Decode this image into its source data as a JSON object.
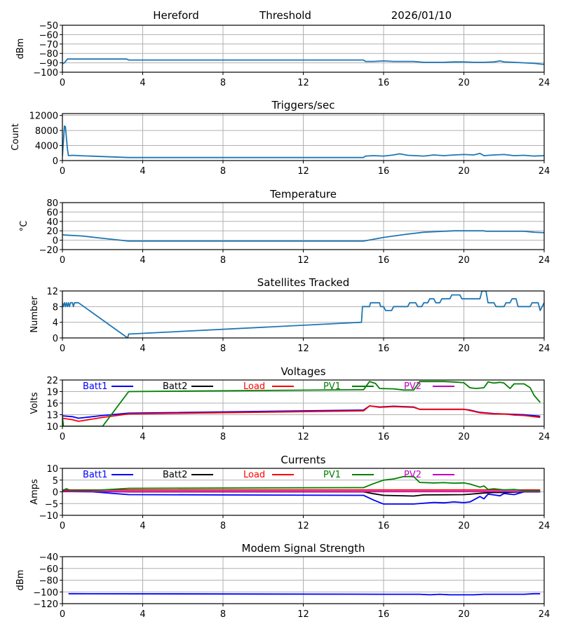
{
  "header": {
    "station": "Hereford",
    "mode": "Threshold",
    "date": "2026/01/10"
  },
  "chart_data": [
    {
      "id": "signal",
      "type": "line",
      "title": "",
      "xlabel": "",
      "ylabel": "dBm",
      "xlim": [
        0,
        24
      ],
      "ylim": [
        -100,
        -50
      ],
      "xticks": [
        0,
        4,
        8,
        12,
        16,
        20,
        24
      ],
      "yticks": [
        -50,
        -60,
        -70,
        -80,
        -90,
        -100
      ],
      "ytick_labels": [
        "−50",
        "−60",
        "−70",
        "−80",
        "−90",
        "−100"
      ],
      "grid": true,
      "series": [
        {
          "name": "Signal",
          "color": "#1f77b4",
          "x": [
            0,
            0.1,
            0.25,
            3.2,
            3.3,
            15.0,
            15.1,
            15.5,
            16.0,
            16.5,
            17.0,
            17.5,
            18.0,
            18.5,
            19.0,
            19.5,
            20.0,
            20.5,
            21.0,
            21.5,
            21.8,
            22.0,
            22.5,
            23.0,
            23.5,
            23.9,
            24.0
          ],
          "y": [
            -91,
            -90,
            -86,
            -86,
            -87,
            -87,
            -88.5,
            -88.5,
            -88,
            -88.5,
            -88.5,
            -88.5,
            -89.5,
            -89.5,
            -89.5,
            -89,
            -89,
            -89.5,
            -89.5,
            -89,
            -88,
            -89,
            -89.5,
            -90,
            -90.5,
            -91.5,
            -91.5
          ]
        }
      ]
    },
    {
      "id": "triggers",
      "type": "line",
      "title": "Triggers/sec",
      "xlabel": "",
      "ylabel": "Count",
      "xlim": [
        0,
        24
      ],
      "ylim": [
        0,
        12500
      ],
      "xticks": [
        0,
        4,
        8,
        12,
        16,
        20,
        24
      ],
      "yticks": [
        0,
        4000,
        8000,
        12000
      ],
      "ytick_labels": [
        "0",
        "4000",
        "8000",
        "12000"
      ],
      "grid": true,
      "series": [
        {
          "name": "Triggers",
          "color": "#1f77b4",
          "x": [
            0,
            0.1,
            0.15,
            0.25,
            0.3,
            0.5,
            0.8,
            3.3,
            15.0,
            15.1,
            15.5,
            16.0,
            16.5,
            16.8,
            17.2,
            17.6,
            18.0,
            18.5,
            19.0,
            19.5,
            20.0,
            20.5,
            20.8,
            21.0,
            21.5,
            22.0,
            22.5,
            23.0,
            23.5,
            24.0
          ],
          "y": [
            1200,
            9200,
            9000,
            3000,
            1300,
            1400,
            1300,
            800,
            800,
            1200,
            1300,
            1200,
            1500,
            1800,
            1400,
            1300,
            1200,
            1500,
            1300,
            1500,
            1600,
            1500,
            1900,
            1300,
            1500,
            1600,
            1300,
            1400,
            1200,
            1300
          ]
        }
      ]
    },
    {
      "id": "temperature",
      "type": "line",
      "title": "Temperature",
      "xlabel": "",
      "ylabel": "°C",
      "xlim": [
        0,
        24
      ],
      "ylim": [
        -20,
        80
      ],
      "xticks": [
        0,
        4,
        8,
        12,
        16,
        20,
        24
      ],
      "yticks": [
        -20,
        0,
        20,
        40,
        60,
        80
      ],
      "ytick_labels": [
        "−20",
        "0",
        "20",
        "40",
        "60",
        "80"
      ],
      "grid": true,
      "series": [
        {
          "name": "Temperature",
          "color": "#1f77b4",
          "x": [
            0,
            0.1,
            1.0,
            2.0,
            3.3,
            15.0,
            15.5,
            16.0,
            17.0,
            18.0,
            19.0,
            19.5,
            20.0,
            21.0,
            21.1,
            22.0,
            23.0,
            23.5,
            24.0
          ],
          "y": [
            12,
            11,
            9,
            4,
            -2,
            -2,
            2,
            6,
            12,
            17,
            19,
            20,
            20,
            20,
            19,
            19,
            19,
            17,
            16
          ]
        }
      ]
    },
    {
      "id": "satellites",
      "type": "line",
      "title": "Satellites Tracked",
      "xlabel": "",
      "ylabel": "Number",
      "xlim": [
        0,
        24
      ],
      "ylim": [
        0,
        12
      ],
      "xticks": [
        0,
        4,
        8,
        12,
        16,
        20,
        24
      ],
      "yticks": [
        0,
        4,
        8,
        12
      ],
      "ytick_labels": [
        "0",
        "4",
        "8",
        "12"
      ],
      "grid": true,
      "series": [
        {
          "name": "Satellites",
          "color": "#1f77b4",
          "x": [
            0,
            0.05,
            0.1,
            0.15,
            0.2,
            0.25,
            0.3,
            0.35,
            0.4,
            0.5,
            0.55,
            0.6,
            0.65,
            0.7,
            0.8,
            3.25,
            3.3,
            3.35,
            14.9,
            14.95,
            15.3,
            15.35,
            15.8,
            15.85,
            16.0,
            16.1,
            16.4,
            16.5,
            17.2,
            17.3,
            17.6,
            17.7,
            17.9,
            18.0,
            18.2,
            18.3,
            18.5,
            18.6,
            18.8,
            18.9,
            19.3,
            19.4,
            19.8,
            19.9,
            20.8,
            20.9,
            21.1,
            21.2,
            21.5,
            21.6,
            22.0,
            22.1,
            22.3,
            22.4,
            22.6,
            22.7,
            23.3,
            23.4,
            23.7,
            23.8,
            24.0
          ],
          "y": [
            9,
            8,
            9,
            8,
            9,
            8,
            9,
            8,
            9,
            9,
            8,
            9,
            9,
            9,
            9,
            0,
            1,
            1,
            4,
            8,
            8,
            9,
            9,
            8,
            8,
            7,
            7,
            8,
            8,
            9,
            9,
            8,
            8,
            9,
            9,
            10,
            10,
            9,
            9,
            10,
            10,
            11,
            11,
            10,
            10,
            12,
            12,
            9,
            9,
            8,
            8,
            9,
            9,
            10,
            10,
            8,
            8,
            9,
            9,
            7,
            9
          ]
        }
      ]
    },
    {
      "id": "voltages",
      "type": "line",
      "title": "Voltages",
      "xlabel": "",
      "ylabel": "Volts",
      "xlim": [
        0,
        24
      ],
      "ylim": [
        10,
        22
      ],
      "xticks": [
        0,
        4,
        8,
        12,
        16,
        20,
        24
      ],
      "yticks": [
        10,
        13,
        16,
        19,
        22
      ],
      "ytick_labels": [
        "10",
        "13",
        "16",
        "19",
        "22"
      ],
      "grid": true,
      "legend": [
        {
          "label": "Batt1",
          "color": "#0000ff"
        },
        {
          "label": "Batt2",
          "color": "#000000"
        },
        {
          "label": "Load",
          "color": "#ff0000"
        },
        {
          "label": "PV1",
          "color": "#008000"
        },
        {
          "label": "PV2",
          "color": "#bf00bf"
        }
      ],
      "series": [
        {
          "name": "Batt1",
          "color": "#0000ff",
          "x": [
            0,
            0.5,
            0.8,
            2.0,
            3.3,
            15.0,
            15.3,
            15.8,
            16.5,
            17.5,
            17.8,
            20.0,
            20.3,
            20.8,
            21.5,
            22.0,
            22.5,
            23.0,
            23.8
          ],
          "y": [
            12.7,
            12.5,
            12.1,
            12.8,
            13.4,
            14.2,
            15.3,
            15.0,
            15.2,
            15.0,
            14.4,
            14.4,
            14.2,
            13.6,
            13.3,
            13.2,
            13.1,
            13.0,
            12.6
          ]
        },
        {
          "name": "Load",
          "color": "#ff0000",
          "x": [
            0,
            0.5,
            0.8,
            2.0,
            3.3,
            15.0,
            15.3,
            15.8,
            16.5,
            17.5,
            17.8,
            20.0,
            20.3,
            20.8,
            21.5,
            22.0,
            22.5,
            23.0,
            23.8
          ],
          "y": [
            12.1,
            11.7,
            11.3,
            12.3,
            13.2,
            14.0,
            15.3,
            14.9,
            15.1,
            14.9,
            14.4,
            14.4,
            14.1,
            13.5,
            13.2,
            13.2,
            12.9,
            12.8,
            12.3
          ]
        },
        {
          "name": "PV1",
          "color": "#008000",
          "x": [
            0,
            0.05,
            2.0,
            3.3,
            15.0,
            15.3,
            15.6,
            15.8,
            16.5,
            17.0,
            17.5,
            17.8,
            19.0,
            19.5,
            20.0,
            20.3,
            20.6,
            21.0,
            21.2,
            21.5,
            21.8,
            22.0,
            22.3,
            22.5,
            23.0,
            23.3,
            23.5,
            23.8
          ],
          "y": [
            12.5,
            10,
            10,
            19,
            19.5,
            21.6,
            21.1,
            19.8,
            19.7,
            19.4,
            19.4,
            21.6,
            21.6,
            21.5,
            21.3,
            20.0,
            19.8,
            20.0,
            21.5,
            21.2,
            21.4,
            21.2,
            19.8,
            21.0,
            21.0,
            20.0,
            18.0,
            16.2
          ]
        }
      ]
    },
    {
      "id": "currents",
      "type": "line",
      "title": "Currents",
      "xlabel": "",
      "ylabel": "Amps",
      "xlim": [
        0,
        24
      ],
      "ylim": [
        -10,
        10
      ],
      "xticks": [
        0,
        4,
        8,
        12,
        16,
        20,
        24
      ],
      "yticks": [
        -10,
        -5,
        0,
        5,
        10
      ],
      "ytick_labels": [
        "−10",
        "−5",
        "0",
        "5",
        "10"
      ],
      "grid": true,
      "legend": [
        {
          "label": "Batt1",
          "color": "#0000ff"
        },
        {
          "label": "Batt2",
          "color": "#000000"
        },
        {
          "label": "Load",
          "color": "#ff0000"
        },
        {
          "label": "PV1",
          "color": "#008000"
        },
        {
          "label": "PV2",
          "color": "#bf00bf"
        }
      ],
      "series": [
        {
          "name": "Batt1",
          "color": "#0000ff",
          "x": [
            0,
            1.5,
            3.3,
            15.0,
            15.5,
            16.0,
            17.5,
            18.5,
            19.0,
            19.5,
            20.0,
            20.3,
            20.8,
            21.0,
            21.2,
            21.5,
            21.8,
            22.0,
            22.5,
            23.0,
            23.8
          ],
          "y": [
            0.2,
            0,
            -1.2,
            -1.5,
            -3.5,
            -5.2,
            -5.2,
            -4.5,
            -4.7,
            -4.3,
            -4.6,
            -4.3,
            -2.0,
            -3.0,
            -1.0,
            -1.3,
            -1.7,
            -0.7,
            -1.2,
            0,
            0
          ]
        },
        {
          "name": "Batt2",
          "color": "#000000",
          "x": [
            0,
            3.3,
            15.0,
            15.5,
            16.0,
            17.5,
            18.0,
            20.0,
            20.3,
            21.0,
            21.5,
            22.0,
            23.0,
            23.8
          ],
          "y": [
            0.3,
            0,
            0,
            -0.8,
            -1.5,
            -1.8,
            -1.3,
            -1.2,
            -1.0,
            -0.5,
            -0.3,
            -0.3,
            0,
            0
          ]
        },
        {
          "name": "Load",
          "color": "#ff0000",
          "x": [
            0,
            23.8
          ],
          "y": [
            0.8,
            0.8
          ]
        },
        {
          "name": "PV2",
          "color": "#bf00bf",
          "x": [
            0,
            23.8
          ],
          "y": [
            0.1,
            0.1
          ]
        },
        {
          "name": "PV1",
          "color": "#008000",
          "x": [
            0,
            0.2,
            0.4,
            2.0,
            3.3,
            15.0,
            15.5,
            16.0,
            16.5,
            17.0,
            17.5,
            17.8,
            18.5,
            19.0,
            19.5,
            20.0,
            20.3,
            20.8,
            21.0,
            21.2,
            21.5,
            22.0,
            22.5,
            23.0,
            23.8
          ],
          "y": [
            0.5,
            1.3,
            0.6,
            0.8,
            1.5,
            1.8,
            3.5,
            5.0,
            5.5,
            6.5,
            6.5,
            4.0,
            3.8,
            3.9,
            3.7,
            3.8,
            3.3,
            2.0,
            2.5,
            1.0,
            1.3,
            0.8,
            1.0,
            0.5,
            0.5
          ]
        }
      ]
    },
    {
      "id": "modem",
      "type": "line",
      "title": "Modem Signal Strength",
      "xlabel": "",
      "ylabel": "dBm",
      "xlim": [
        0,
        24
      ],
      "ylim": [
        -120,
        -40
      ],
      "xticks": [
        0,
        4,
        8,
        12,
        16,
        20,
        24
      ],
      "yticks": [
        -40,
        -60,
        -80,
        -100,
        -120
      ],
      "ytick_labels": [
        "−40",
        "−60",
        "−80",
        "−100",
        "−120"
      ],
      "grid": true,
      "series": [
        {
          "name": "Modem",
          "color": "#0000ff",
          "x": [
            0.3,
            8.0,
            16.0,
            17.8,
            18.3,
            18.8,
            19.3,
            20.5,
            21.0,
            23.0,
            23.5,
            23.8
          ],
          "y": [
            -103,
            -103.5,
            -104,
            -104,
            -105,
            -104,
            -105,
            -105,
            -104,
            -104,
            -103,
            -103
          ]
        }
      ]
    }
  ]
}
